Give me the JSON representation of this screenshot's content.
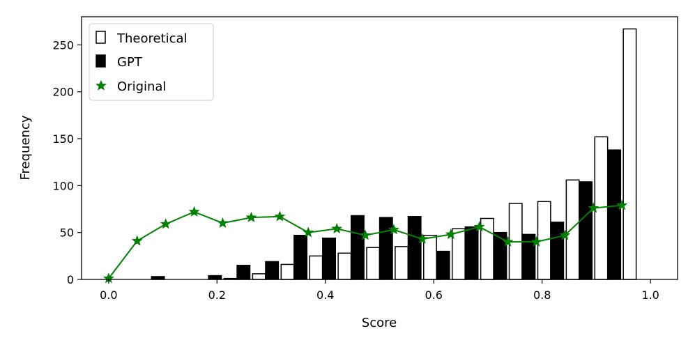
{
  "chart_data": {
    "type": "bar",
    "xlabel": "Score",
    "ylabel": "Frequency",
    "xlim": [
      -0.05,
      1.05
    ],
    "ylim": [
      0,
      280
    ],
    "xticks": [
      0.0,
      0.2,
      0.4,
      0.6,
      0.8,
      1.0
    ],
    "xtick_labels": [
      "0.0",
      "0.2",
      "0.4",
      "0.6",
      "0.8",
      "1.0"
    ],
    "yticks": [
      0,
      50,
      100,
      150,
      200,
      250
    ],
    "ytick_labels": [
      "0",
      "50",
      "100",
      "150",
      "200",
      "250"
    ],
    "grid": false,
    "legend_position": "top-left",
    "legend": [
      "Theoretical",
      "GPT",
      "Original"
    ],
    "bin_centers": [
      0.0,
      0.0526,
      0.1053,
      0.1579,
      0.2105,
      0.2632,
      0.3158,
      0.3684,
      0.4211,
      0.4737,
      0.5263,
      0.5789,
      0.6316,
      0.6842,
      0.7368,
      0.7895,
      0.8421,
      0.8947,
      0.9474
    ],
    "series": [
      {
        "name": "Theoretical",
        "style": "bar-hollow",
        "color": "#000000",
        "values": [
          0,
          0,
          0,
          0,
          1,
          6,
          16,
          25,
          28,
          34,
          35,
          47,
          54,
          65,
          81,
          83,
          106,
          152,
          267
        ]
      },
      {
        "name": "GPT",
        "style": "bar-filled",
        "color": "#000000",
        "values": [
          0,
          0,
          3,
          0,
          4,
          15,
          19,
          47,
          44,
          68,
          66,
          67,
          30,
          56,
          50,
          48,
          61,
          104,
          138
        ]
      },
      {
        "name": "Original",
        "style": "line-star",
        "color": "#008000",
        "values": [
          1,
          41,
          59,
          72,
          60,
          66,
          67,
          50,
          54,
          47,
          53,
          43,
          48,
          56,
          40,
          40,
          47,
          76,
          79
        ]
      }
    ]
  }
}
